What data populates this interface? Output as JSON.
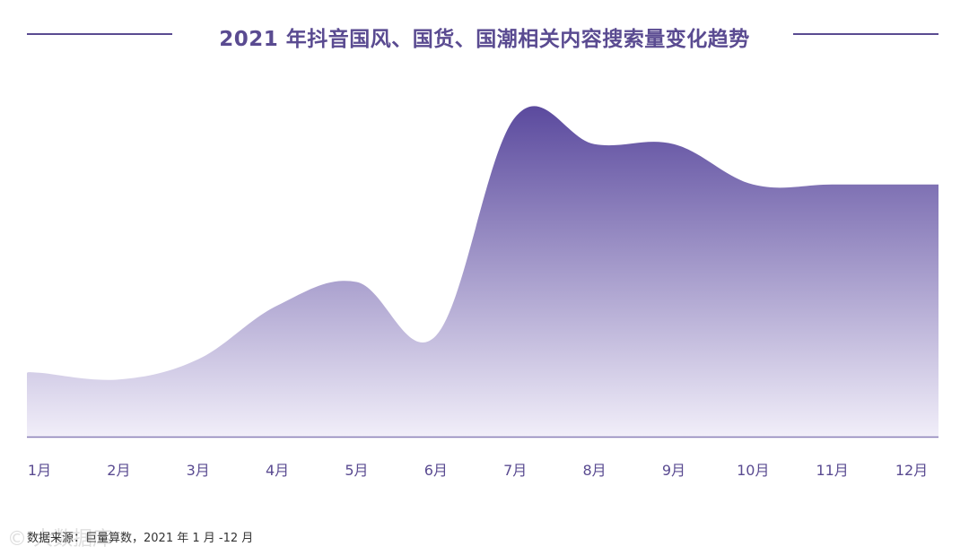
{
  "header": {
    "title": "2021 年抖音国风、国货、国潮相关内容搜索量变化趋势"
  },
  "footer": {
    "source": "数据来源：巨量算数，2021 年 1 月 -12 月",
    "watermark": "© 大数据库"
  },
  "colors": {
    "accent": "#5a4b91",
    "area_top": "#5b4a9e",
    "area_bottom": "#f1eef9",
    "baseline": "#8a7fb8"
  },
  "chart_data": {
    "type": "area",
    "title": "2021 年抖音国风、国货、国潮相关内容搜索量变化趋势",
    "xlabel": "",
    "ylabel": "",
    "categories": [
      "1月",
      "2月",
      "3月",
      "4月",
      "5月",
      "6月",
      "7月",
      "8月",
      "9月",
      "10月",
      "11月",
      "12月"
    ],
    "series": [
      {
        "values": [
          19,
          17,
          23,
          39,
          46,
          30,
          95,
          87,
          87,
          75,
          75,
          75
        ]
      }
    ],
    "ylim": [
      0,
      100
    ],
    "grid": false,
    "legend": "none"
  }
}
